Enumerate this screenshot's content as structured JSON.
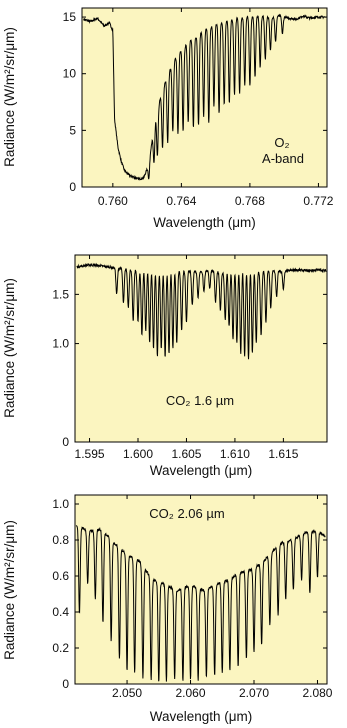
{
  "chart_data": [
    {
      "type": "line",
      "xlabel": "Wavelength (μm)",
      "ylabel": "Radiance (W/m²/sr/μm)",
      "annotation": [
        "O₂",
        "A-band"
      ],
      "xlim": [
        0.7582,
        0.7725
      ],
      "ylim": [
        0,
        15.8
      ],
      "xticks": [
        0.76,
        0.764,
        0.768,
        0.772
      ],
      "xtick_labels": [
        "0.760",
        "0.764",
        "0.768",
        "0.772"
      ],
      "yticks": [
        0,
        5,
        10,
        15
      ],
      "ytick_labels": [
        "0",
        "5",
        "10",
        "15"
      ],
      "grid": false,
      "background": "#fbf5c0",
      "series": [
        {
          "x": [
            0.7583,
            0.7587,
            0.7591,
            0.7595,
            0.7598,
            0.76,
            0.7601,
            0.7603,
            0.7605,
            0.7607,
            0.761,
            0.7615,
            0.7618,
            0.762,
            0.7622,
            0.7624,
            0.7627,
            0.7631,
            0.7634,
            0.7637,
            0.7641,
            0.7645,
            0.7649,
            0.7653,
            0.7657,
            0.7661,
            0.7665,
            0.7669,
            0.7673,
            0.7677,
            0.7681,
            0.7685,
            0.7689,
            0.7693,
            0.7697,
            0.77,
            0.7703,
            0.7707,
            0.7711,
            0.7715,
            0.7719,
            0.7724
          ],
          "y": [
            14.8,
            14.6,
            14.9,
            14.2,
            14.5,
            13.8,
            6,
            3.5,
            2.2,
            1.4,
            1.0,
            0.7,
            0.8,
            1.6,
            3.2,
            5.2,
            7.4,
            9.5,
            10.5,
            11.5,
            12.2,
            12.9,
            13.3,
            13.8,
            14.1,
            14.4,
            14.6,
            14.7,
            14.9,
            15.0,
            15.0,
            15.1,
            15.0,
            15.0,
            15.1,
            15.0,
            14.9,
            14.8,
            15.1,
            14.9,
            15.0,
            15.0
          ],
          "lines": {
            "x": [
              0.7621,
              0.7624,
              0.7626,
              0.7629,
              0.7632,
              0.7635,
              0.7638,
              0.7641,
              0.7644,
              0.7647,
              0.765,
              0.7653,
              0.7656,
              0.7659,
              0.7662,
              0.7665,
              0.7668,
              0.7671,
              0.7674,
              0.7677,
              0.768,
              0.7683,
              0.7686,
              0.7689,
              0.7692,
              0.7695,
              0.7699
            ],
            "depth": [
              0.7,
              0.6,
              0.6,
              0.6,
              0.6,
              0.55,
              0.6,
              0.6,
              0.55,
              0.6,
              0.6,
              0.55,
              0.6,
              0.5,
              0.55,
              0.5,
              0.5,
              0.45,
              0.45,
              0.4,
              0.4,
              0.35,
              0.3,
              0.25,
              0.2,
              0.15,
              0.1
            ]
          }
        }
      ]
    },
    {
      "type": "line",
      "xlabel": "Wavelength (μm)",
      "ylabel": "Radiance (W/m²/sr/μm)",
      "annotation": "CO₂ 1.6 µm",
      "xlim": [
        1.5935,
        1.6195
      ],
      "ylim": [
        0,
        1.9
      ],
      "xticks": [
        1.595,
        1.6,
        1.605,
        1.61,
        1.615
      ],
      "xtick_labels": [
        "1.595",
        "1.600",
        "1.605",
        "1.610",
        "1.615"
      ],
      "yticks": [
        0,
        1.0,
        1.5
      ],
      "ytick_labels": [
        "0",
        "1.0",
        "1.5"
      ],
      "grid": false,
      "background": "#fbf5c0",
      "series": [
        {
          "x": [
            1.5937,
            1.595,
            1.5962,
            1.5975,
            1.5987,
            1.6,
            1.6012,
            1.6025,
            1.6037,
            1.605,
            1.6062,
            1.6075,
            1.6087,
            1.61,
            1.6112,
            1.6125,
            1.6137,
            1.615,
            1.6162,
            1.6175,
            1.6187,
            1.6194
          ],
          "y": [
            1.78,
            1.8,
            1.79,
            1.77,
            1.76,
            1.74,
            1.74,
            1.72,
            1.73,
            1.74,
            1.73,
            1.74,
            1.72,
            1.73,
            1.74,
            1.73,
            1.74,
            1.73,
            1.75,
            1.74,
            1.75,
            1.74
          ],
          "lines": {
            "x": [
              1.5978,
              1.5985,
              1.599,
              1.5995,
              1.6,
              1.6004,
              1.6008,
              1.6012,
              1.6016,
              1.602,
              1.6024,
              1.6028,
              1.6032,
              1.6036,
              1.604,
              1.6045,
              1.605,
              1.6056,
              1.6062,
              1.6068,
              1.6074,
              1.608,
              1.6085,
              1.609,
              1.6094,
              1.6098,
              1.6102,
              1.6106,
              1.611,
              1.6114,
              1.6118,
              1.6122,
              1.6127,
              1.6132,
              1.6137,
              1.6143,
              1.615
            ],
            "depth": [
              0.15,
              0.2,
              0.22,
              0.3,
              0.3,
              0.38,
              0.35,
              0.42,
              0.45,
              0.5,
              0.45,
              0.5,
              0.48,
              0.45,
              0.42,
              0.35,
              0.3,
              0.2,
              0.15,
              0.12,
              0.1,
              0.18,
              0.22,
              0.28,
              0.32,
              0.4,
              0.42,
              0.48,
              0.5,
              0.52,
              0.48,
              0.42,
              0.38,
              0.3,
              0.22,
              0.15,
              0.1
            ]
          }
        }
      ]
    },
    {
      "type": "line",
      "xlabel": "Wavelength (μm)",
      "ylabel": "Radiance (W/m²/sr/μm)",
      "annotation": "CO₂ 2.06 µm",
      "xlim": [
        2.0418,
        2.0815
      ],
      "ylim": [
        0,
        1.05
      ],
      "xticks": [
        2.05,
        2.06,
        2.07,
        2.08
      ],
      "xtick_labels": [
        "2.050",
        "2.060",
        "2.070",
        "2.080"
      ],
      "yticks": [
        0,
        0.2,
        0.4,
        0.6,
        0.8,
        1.0
      ],
      "ytick_labels": [
        "0",
        "0.2",
        "0.4",
        "0.6",
        "0.8",
        "1.0"
      ],
      "grid": false,
      "background": "#fbf5c0",
      "series": [
        {
          "x": [
            2.042,
            2.044,
            2.046,
            2.048,
            2.05,
            2.052,
            2.054,
            2.056,
            2.058,
            2.06,
            2.062,
            2.064,
            2.066,
            2.068,
            2.07,
            2.072,
            2.074,
            2.076,
            2.078,
            2.08,
            2.0812
          ],
          "y": [
            0.88,
            0.85,
            0.86,
            0.78,
            0.72,
            0.68,
            0.58,
            0.55,
            0.52,
            0.55,
            0.52,
            0.55,
            0.58,
            0.62,
            0.64,
            0.7,
            0.78,
            0.8,
            0.84,
            0.85,
            0.82
          ],
          "lines": {
            "x": [
              2.0425,
              2.0438,
              2.045,
              2.0462,
              2.0475,
              2.0488,
              2.05,
              2.0512,
              2.0525,
              2.0538,
              2.055,
              2.0562,
              2.0575,
              2.0588,
              2.06,
              2.0612,
              2.0625,
              2.0638,
              2.065,
              2.0662,
              2.0675,
              2.0688,
              2.07,
              2.0712,
              2.0725,
              2.0738,
              2.075,
              2.0762,
              2.0775,
              2.0788,
              2.08
            ],
            "depth": [
              0.55,
              0.35,
              0.45,
              0.6,
              0.7,
              0.82,
              0.9,
              0.92,
              0.95,
              0.97,
              0.98,
              0.97,
              0.95,
              0.97,
              0.95,
              0.96,
              0.93,
              0.92,
              0.9,
              0.88,
              0.85,
              0.78,
              0.72,
              0.68,
              0.55,
              0.5,
              0.4,
              0.35,
              0.3,
              0.4,
              0.3
            ]
          }
        }
      ]
    }
  ]
}
